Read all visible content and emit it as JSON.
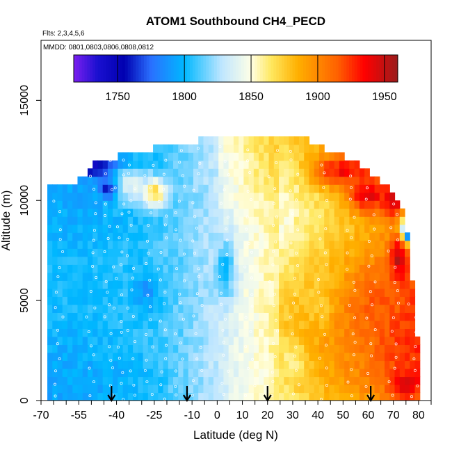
{
  "chart_data": {
    "type": "heatmap",
    "title": "ATOM1 Southbound CH4_PECD",
    "subtitle_flights": "Flts: 2,3,4,5,6",
    "subtitle_dates": "MMDD: 0801,0803,0806,0808,0812",
    "xlabel": "Latitude (deg N)",
    "ylabel": "Altitude (m)",
    "xlim": [
      -70,
      85
    ],
    "ylim": [
      0,
      18000
    ],
    "x_ticks": [
      -70,
      -55,
      -40,
      -25,
      -10,
      0,
      10,
      20,
      30,
      40,
      50,
      60,
      70,
      80
    ],
    "x_tick_labels": [
      "-70",
      "-55",
      "-40",
      "-25",
      "-10",
      "0",
      "10",
      "20",
      "30",
      "40",
      "50",
      "60",
      "70",
      "80"
    ],
    "y_ticks": [
      0,
      5000,
      10000,
      15000
    ],
    "y_tick_labels": [
      "0",
      "5000",
      "10000",
      "15000"
    ],
    "colorbar": {
      "range": [
        1717,
        1960
      ],
      "ticks": [
        1750,
        1800,
        1850,
        1900,
        1950
      ],
      "tick_labels": [
        "1750",
        "1800",
        "1850",
        "1900",
        "1950"
      ],
      "stops": [
        {
          "value": 1717,
          "color": "#7c1ff0"
        },
        {
          "value": 1735,
          "color": "#1a10d0"
        },
        {
          "value": 1755,
          "color": "#0000b0"
        },
        {
          "value": 1775,
          "color": "#2a70ff"
        },
        {
          "value": 1800,
          "color": "#00b8ff"
        },
        {
          "value": 1828,
          "color": "#bfe6ff"
        },
        {
          "value": 1850,
          "color": "#ffffe6"
        },
        {
          "value": 1865,
          "color": "#ffe860"
        },
        {
          "value": 1885,
          "color": "#ffb000"
        },
        {
          "value": 1915,
          "color": "#ff6000"
        },
        {
          "value": 1935,
          "color": "#ff0000"
        },
        {
          "value": 1960,
          "color": "#9a1d1d"
        }
      ]
    },
    "arrows_latitude": [
      -42,
      -12,
      20,
      61
    ],
    "profile_latitudes": [
      -63,
      -50,
      -43,
      -39,
      -34,
      -27,
      -22,
      -15,
      -8,
      3,
      13,
      22,
      31,
      42,
      53,
      61,
      70,
      78
    ],
    "envelope": [
      {
        "lat": -67.5,
        "top_alt": 10500
      },
      {
        "lat": -60,
        "top_alt": 10500
      },
      {
        "lat": -54,
        "top_alt": 11000
      },
      {
        "lat": -48,
        "top_alt": 11800
      },
      {
        "lat": -40,
        "top_alt": 12000
      },
      {
        "lat": -30,
        "top_alt": 12300
      },
      {
        "lat": -20,
        "top_alt": 12500
      },
      {
        "lat": -12,
        "top_alt": 12600
      },
      {
        "lat": -5,
        "top_alt": 13000
      },
      {
        "lat": 5,
        "top_alt": 13000
      },
      {
        "lat": 15,
        "top_alt": 13000
      },
      {
        "lat": 25,
        "top_alt": 13000
      },
      {
        "lat": 35,
        "top_alt": 13000
      },
      {
        "lat": 40,
        "top_alt": 12500
      },
      {
        "lat": 50,
        "top_alt": 12000
      },
      {
        "lat": 57,
        "top_alt": 11500
      },
      {
        "lat": 62,
        "top_alt": 11000
      },
      {
        "lat": 67,
        "top_alt": 10500
      },
      {
        "lat": 70,
        "top_alt": 10000
      },
      {
        "lat": 74,
        "top_alt": 9500
      },
      {
        "lat": 76,
        "top_alt": 8000
      },
      {
        "lat": 78,
        "top_alt": 5000
      },
      {
        "lat": 79,
        "top_alt": 3000
      },
      {
        "lat": 79,
        "top_alt": 0
      }
    ],
    "latitude_profile": [
      {
        "lat": -65,
        "ch4": 1798
      },
      {
        "lat": -55,
        "ch4": 1798
      },
      {
        "lat": -45,
        "ch4": 1800
      },
      {
        "lat": -35,
        "ch4": 1802
      },
      {
        "lat": -25,
        "ch4": 1807
      },
      {
        "lat": -15,
        "ch4": 1814
      },
      {
        "lat": -5,
        "ch4": 1824
      },
      {
        "lat": 5,
        "ch4": 1838
      },
      {
        "lat": 12,
        "ch4": 1847
      },
      {
        "lat": 20,
        "ch4": 1855
      },
      {
        "lat": 30,
        "ch4": 1866
      },
      {
        "lat": 40,
        "ch4": 1876
      },
      {
        "lat": 50,
        "ch4": 1886
      },
      {
        "lat": 60,
        "ch4": 1895
      },
      {
        "lat": 70,
        "ch4": 1908
      },
      {
        "lat": 80,
        "ch4": 1915
      }
    ],
    "anomalies": [
      {
        "lat": -50,
        "alt": 11700,
        "ch4": 1745,
        "r_lat": 12,
        "r_alt": 500
      },
      {
        "lat": -42,
        "alt": 10600,
        "ch4": 1740,
        "r_lat": 4,
        "r_alt": 400
      },
      {
        "lat": -35,
        "alt": 10800,
        "ch4": 1840,
        "r_lat": 6,
        "r_alt": 900
      },
      {
        "lat": -25,
        "alt": 10400,
        "ch4": 1870,
        "r_lat": 5,
        "r_alt": 800
      },
      {
        "lat": 50,
        "alt": 11500,
        "ch4": 1935,
        "r_lat": 12,
        "r_alt": 800
      },
      {
        "lat": 60,
        "alt": 10300,
        "ch4": 1940,
        "r_lat": 8,
        "r_alt": 900
      },
      {
        "lat": 70,
        "alt": 10000,
        "ch4": 1950,
        "r_lat": 4,
        "r_alt": 700
      },
      {
        "lat": 76,
        "alt": 8500,
        "ch4": 1730,
        "r_lat": 3,
        "r_alt": 600
      },
      {
        "lat": 72,
        "alt": 7000,
        "ch4": 1955,
        "r_lat": 3,
        "r_alt": 1200
      },
      {
        "lat": 65,
        "alt": 5000,
        "ch4": 1915,
        "r_lat": 10,
        "r_alt": 1500
      },
      {
        "lat": 75,
        "alt": 800,
        "ch4": 1945,
        "r_lat": 5,
        "r_alt": 700
      },
      {
        "lat": -28,
        "alt": 5500,
        "ch4": 1790,
        "r_lat": 6,
        "r_alt": 1200
      },
      {
        "lat": 3,
        "alt": 6500,
        "ch4": 1800,
        "r_lat": 4,
        "r_alt": 1500
      },
      {
        "lat": 30,
        "alt": 2000,
        "ch4": 1860,
        "r_lat": 5,
        "r_alt": 1000
      },
      {
        "lat": 40,
        "alt": 5000,
        "ch4": 1875,
        "r_lat": 6,
        "r_alt": 1500
      }
    ]
  }
}
